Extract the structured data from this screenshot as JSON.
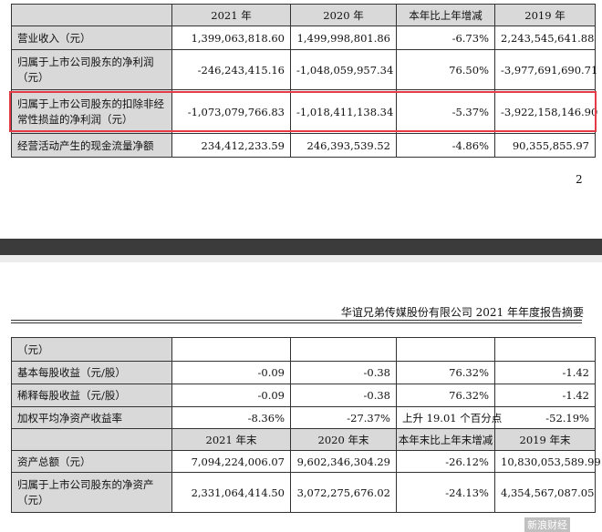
{
  "table1": {
    "headers": [
      "",
      "2021 年",
      "2020 年",
      "本年比上年增减",
      "2019 年"
    ],
    "rows": [
      [
        "营业收入（元）",
        "1,399,063,818.60",
        "1,499,998,801.86",
        "-6.73%",
        "2,243,545,641.88"
      ],
      [
        "归属于上市公司股东的净利润（元）",
        "-246,243,415.16",
        "-1,048,059,957.34",
        "76.50%",
        "-3,977,691,690.71"
      ],
      [
        "归属于上市公司股东的扣除非经常性损益的净利润（元）",
        "-1,073,079,766.83",
        "-1,018,411,138.34",
        "-5.37%",
        "-3,922,158,146.90"
      ],
      [
        "经营活动产生的现金流量净额",
        "234,412,233.59",
        "246,393,539.52",
        "-4.86%",
        "90,355,855.97"
      ]
    ]
  },
  "page_number": "2",
  "running_header": "华谊兄弟传媒股份有限公司 2021 年年度报告摘要",
  "table2": {
    "rows_top": [
      [
        "（元）",
        "",
        "",
        "",
        ""
      ],
      [
        "基本每股收益（元/股）",
        "-0.09",
        "-0.38",
        "76.32%",
        "-1.42"
      ],
      [
        "稀释每股收益（元/股）",
        "-0.09",
        "-0.38",
        "76.32%",
        "-1.42"
      ],
      [
        "加权平均净资产收益率",
        "-8.36%",
        "-27.37%",
        "上升 19.01 个百分点",
        "-52.19%"
      ]
    ],
    "headers": [
      "",
      "2021 年末",
      "2020 年末",
      "本年末比上年末增减",
      "2019 年末"
    ],
    "rows_bottom": [
      [
        "资产总额（元）",
        "7,094,224,006.07",
        "9,602,346,304.29",
        "-26.12%",
        "10,830,053,589.99"
      ],
      [
        "归属于上市公司股东的净资产（元）",
        "2,331,064,414.50",
        "3,072,275,676.02",
        "-24.13%",
        "4,354,567,087.05"
      ]
    ]
  },
  "watermark": "新浪财经"
}
